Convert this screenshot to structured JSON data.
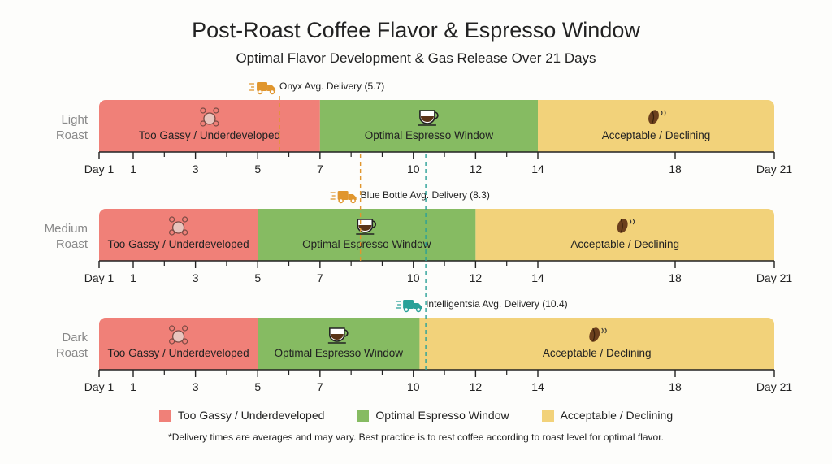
{
  "title": "Post-Roast Coffee Flavor & Espresso Window",
  "subtitle": "Optimal Flavor Development & Gas Release Over 21 Days",
  "chart_data": {
    "type": "timeline",
    "title": "Post-Roast Coffee Flavor & Espresso Window",
    "subtitle": "Optimal Flavor Development & Gas Release Over 21 Days",
    "x_ticks": [
      {
        "value": 0,
        "label": "Day 1"
      },
      {
        "value": 1,
        "label": "1"
      },
      {
        "value": 3,
        "label": "3"
      },
      {
        "value": 5,
        "label": "5"
      },
      {
        "value": 7,
        "label": "7"
      },
      {
        "value": 10,
        "label": "10"
      },
      {
        "value": 12,
        "label": "12"
      },
      {
        "value": 14,
        "label": "14"
      },
      {
        "value": 18,
        "label": "18"
      },
      {
        "value": 21,
        "label": "Day 21"
      }
    ],
    "minor_ticks": [
      2,
      4,
      6,
      8,
      9,
      11,
      13
    ],
    "zones": {
      "gassy": {
        "label": "Too Gassy / Underdeveloped",
        "color": "#f08078",
        "icon": "bubbles-icon"
      },
      "optimal": {
        "label": "Optimal Espresso Window",
        "color": "#86bb62",
        "icon": "espresso-cup-icon"
      },
      "acceptable": {
        "label": "Acceptable / Declining",
        "color": "#f2d27a",
        "icon": "coffee-bean-icon"
      }
    },
    "rows": [
      {
        "label_line1": "Light",
        "label_line2": "Roast",
        "segments": [
          {
            "zone": "gassy",
            "start": 0,
            "end": 7
          },
          {
            "zone": "optimal",
            "start": 7,
            "end": 14
          },
          {
            "zone": "acceptable",
            "start": 14,
            "end": 21
          }
        ]
      },
      {
        "label_line1": "Medium",
        "label_line2": "Roast",
        "segments": [
          {
            "zone": "gassy",
            "start": 0,
            "end": 5
          },
          {
            "zone": "optimal",
            "start": 5,
            "end": 12
          },
          {
            "zone": "acceptable",
            "start": 12,
            "end": 21
          }
        ]
      },
      {
        "label_line1": "Dark",
        "label_line2": "Roast",
        "segments": [
          {
            "zone": "gassy",
            "start": 0,
            "end": 5
          },
          {
            "zone": "optimal",
            "start": 5,
            "end": 10.2
          },
          {
            "zone": "acceptable",
            "start": 10.2,
            "end": 21
          }
        ]
      }
    ],
    "deliveries": [
      {
        "label": "Onyx Avg. Delivery (5.7)",
        "value": 5.7,
        "row": 0,
        "color": "#e0962e",
        "icon": "delivery-truck-icon"
      },
      {
        "label": "Blue Bottle Avg. Delivery (8.3)",
        "value": 8.3,
        "row": 1,
        "color": "#e0962e",
        "icon": "delivery-truck-icon"
      },
      {
        "label": "Intelligentsia Avg. Delivery (10.4)",
        "value": 10.4,
        "row": 2,
        "color": "#2aa198",
        "icon": "delivery-truck-icon"
      }
    ]
  },
  "legend": [
    {
      "label": "Too Gassy / Underdeveloped",
      "color": "#f08078"
    },
    {
      "label": "Optimal Espresso Window",
      "color": "#86bb62"
    },
    {
      "label": "Acceptable / Declining",
      "color": "#f2d27a"
    }
  ],
  "footnote": "*Delivery times are averages and may vary. Best practice is to rest coffee according to roast level for optimal flavor."
}
